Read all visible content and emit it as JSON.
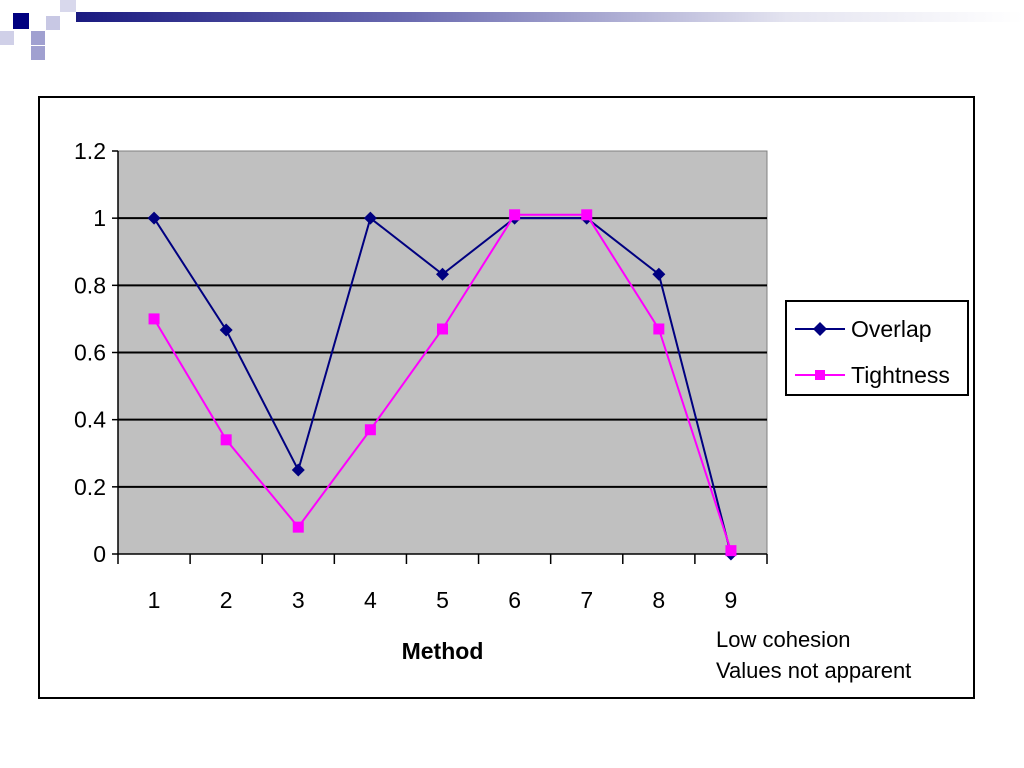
{
  "chart_data": {
    "type": "line",
    "x": [
      1,
      2,
      3,
      4,
      5,
      6,
      7,
      8,
      9
    ],
    "categories": [
      "1",
      "2",
      "3",
      "4",
      "5",
      "6",
      "7",
      "8",
      "9"
    ],
    "series": [
      {
        "name": "Overlap",
        "values": [
          1.0,
          0.667,
          0.25,
          1.0,
          0.833,
          1.0,
          1.0,
          0.833,
          0.0
        ],
        "color": "#000080",
        "marker": "diamond"
      },
      {
        "name": "Tightness",
        "values": [
          0.7,
          0.34,
          0.08,
          0.37,
          0.67,
          1.01,
          1.01,
          0.67,
          0.01
        ],
        "color": "#ff00ff",
        "marker": "square"
      }
    ],
    "title": "",
    "xlabel": "Method",
    "ylabel": "",
    "ylim": [
      0,
      1.2
    ],
    "yticks": [
      "0",
      "0.2",
      "0.4",
      "0.6",
      "0.8",
      "1",
      "1.2"
    ],
    "ytick_values": [
      0,
      0.2,
      0.4,
      0.6,
      0.8,
      1.0,
      1.2
    ],
    "grid": true,
    "plot_background": "#c0c0c0",
    "legend_position": "right",
    "annotations": [
      "Low cohesion",
      "Values not apparent"
    ]
  },
  "theme": {
    "header_dark": "#000080",
    "header_light": "#a0a0d0"
  }
}
